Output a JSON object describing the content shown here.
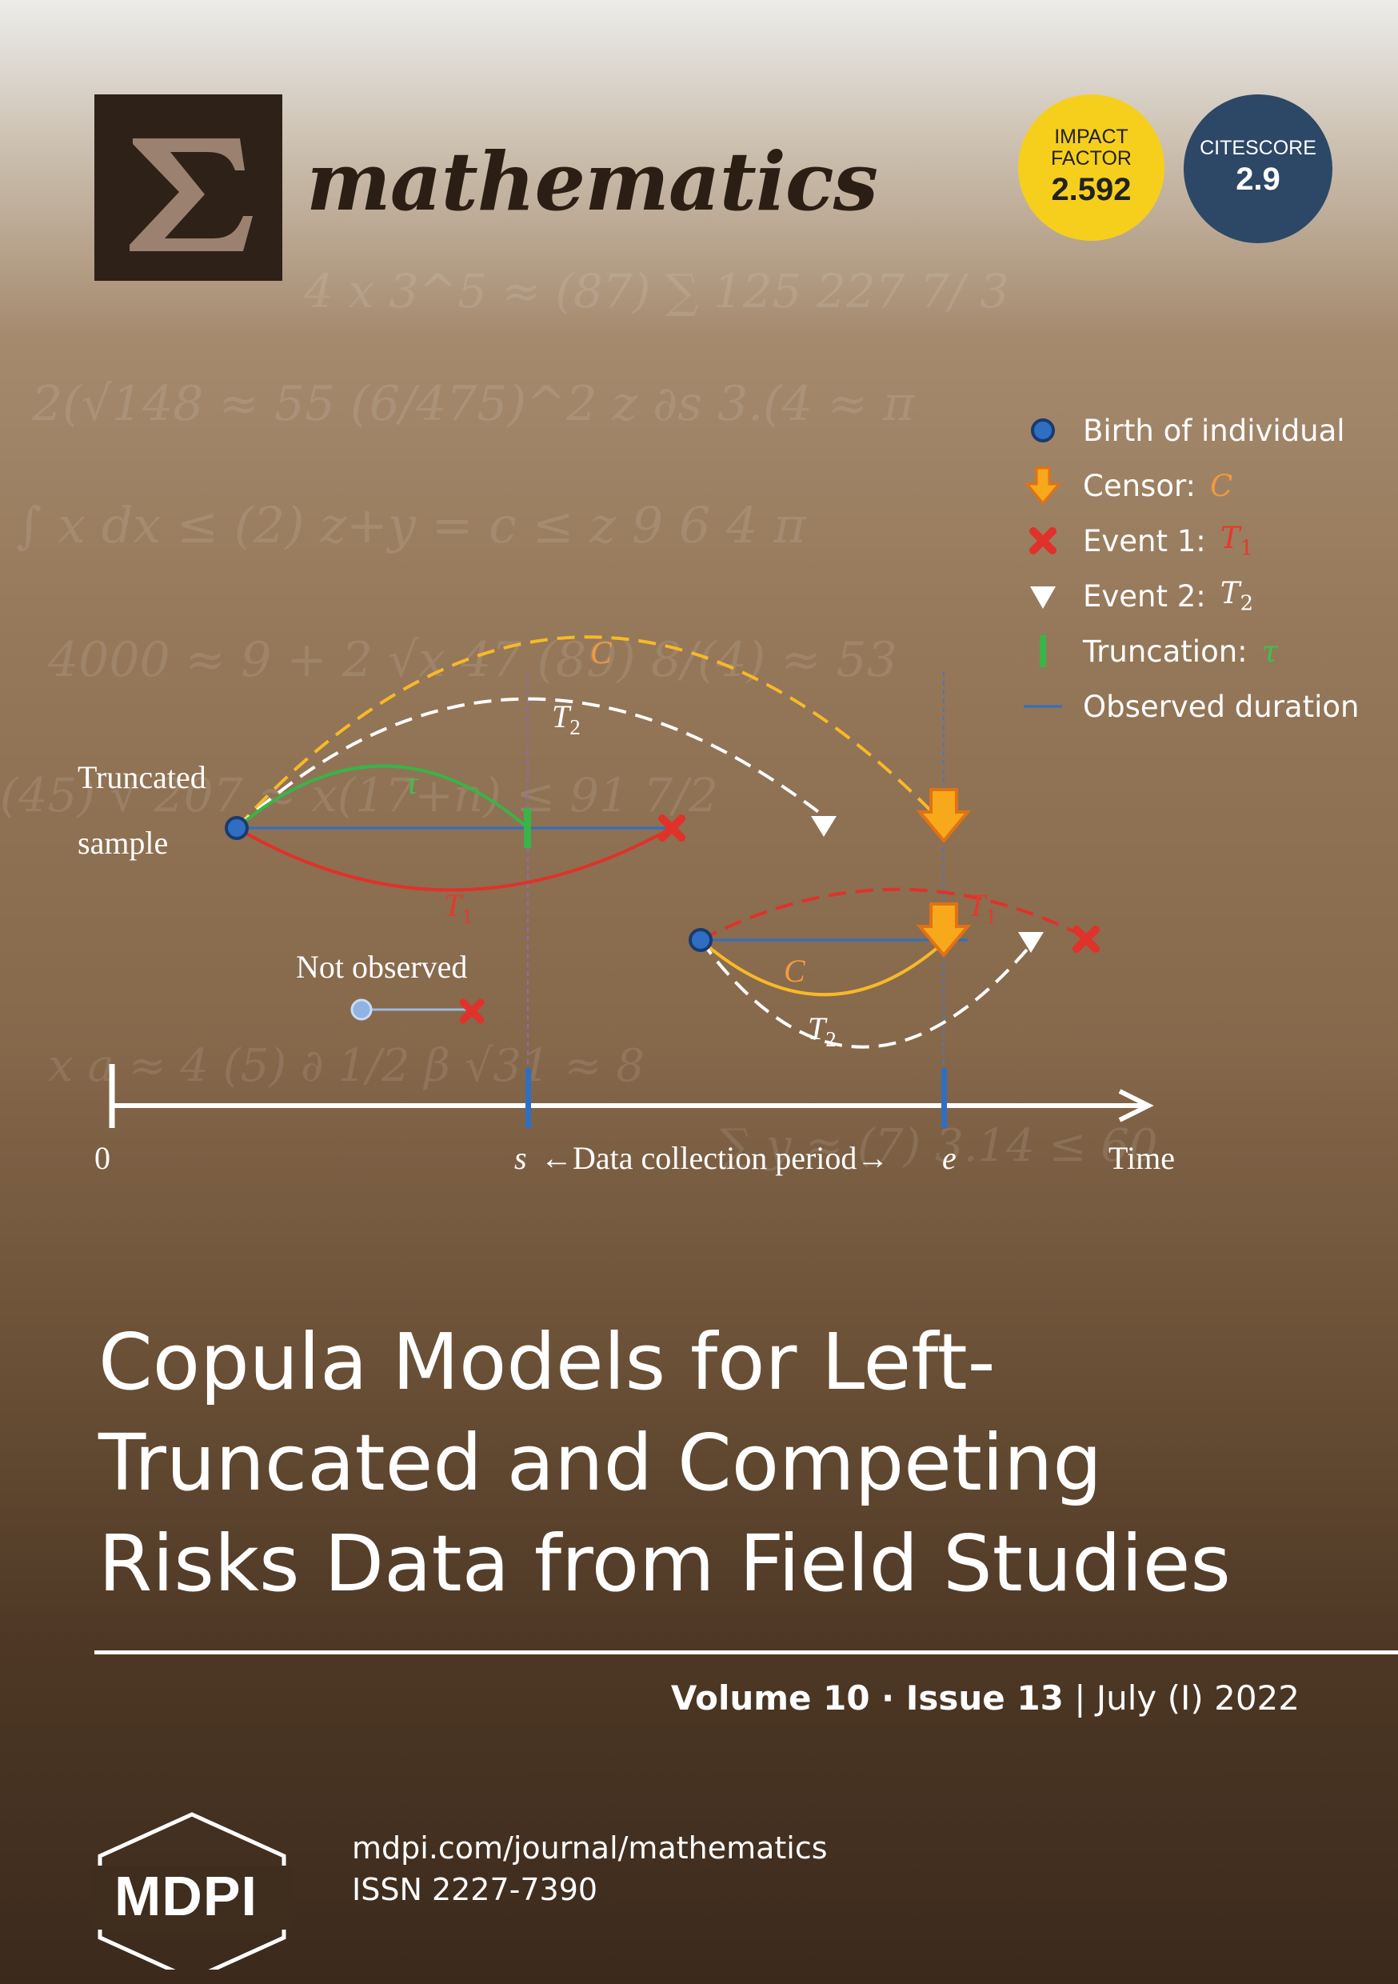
{
  "journal": {
    "name": "mathematics",
    "logo_glyph": "Σ",
    "impact_factor_label_1": "IMPACT",
    "impact_factor_label_2": "FACTOR",
    "impact_factor_value": "2.592",
    "citescore_label": "CITESCORE",
    "citescore_value": "2.9"
  },
  "legend": {
    "birth": "Birth of individual",
    "censor": "Censor:",
    "censor_sym": "C",
    "event1": "Event 1:",
    "event1_sym": "T",
    "event1_sub": "1",
    "event2": "Event 2:",
    "event2_sym": "T",
    "event2_sub": "2",
    "truncation": "Truncation:",
    "truncation_sym": "τ",
    "observed": "Observed duration"
  },
  "diagram": {
    "truncated_line1": "Truncated",
    "truncated_line2": "sample",
    "not_observed": "Not observed",
    "axis_zero": "0",
    "axis_s": "s",
    "axis_period": "←Data collection period→",
    "axis_e": "e",
    "axis_time": "Time",
    "sym_C": "C",
    "sym_T": "T",
    "sub_1": "1",
    "sub_2": "2",
    "sym_tau": "τ"
  },
  "title": {
    "line1": "Copula Models for Left-",
    "line2": "Truncated and Competing",
    "line3": "Risks Data from Field Studies"
  },
  "issue": {
    "volume": "Volume 10 · Issue 13",
    "separator": "|",
    "date": "July (I) 2022"
  },
  "footer": {
    "publisher": "MDPI",
    "url": "mdpi.com/journal/mathematics",
    "issn": "ISSN 2227-7390"
  },
  "colors": {
    "gold": "#f6cf1d",
    "navy": "#2c4866",
    "orange": "#f7a81b",
    "red": "#e0312b",
    "green": "#38b449",
    "blue": "#2f6fc3"
  }
}
